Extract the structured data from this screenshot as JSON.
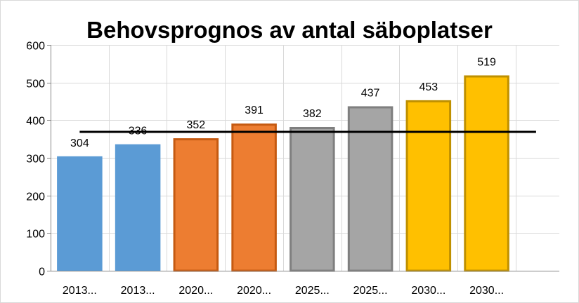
{
  "chart_data": {
    "type": "bar",
    "title": "Behovsprognos av antal säboplatser",
    "xlabel": "",
    "ylabel": "",
    "ylim": [
      0,
      600
    ],
    "y_ticks": [
      "0",
      "100",
      "200",
      "300",
      "400",
      "500",
      "600"
    ],
    "categories": [
      "2013...",
      "2013...",
      "2020...",
      "2020...",
      "2025...",
      "2025...",
      "2030...",
      "2030..."
    ],
    "values": [
      304,
      336,
      352,
      391,
      382,
      437,
      453,
      519
    ],
    "value_labels": [
      "304",
      "336",
      "352",
      "391",
      "382",
      "437",
      "453",
      "519"
    ],
    "bar_colors": [
      "#5b9bd5",
      "#5b9bd5",
      "#ed7d31",
      "#ed7d31",
      "#a5a5a5",
      "#a5a5a5",
      "#ffc000",
      "#ffc000"
    ],
    "bar_borders": [
      "#5b9bd5",
      "#5b9bd5",
      "#c55a11",
      "#c55a11",
      "#7f7f7f",
      "#7f7f7f",
      "#bf9000",
      "#bf9000"
    ],
    "reference_line": {
      "y_start": 369,
      "y_end": 369,
      "color": "#000000"
    },
    "grid": true,
    "legend": "none"
  }
}
